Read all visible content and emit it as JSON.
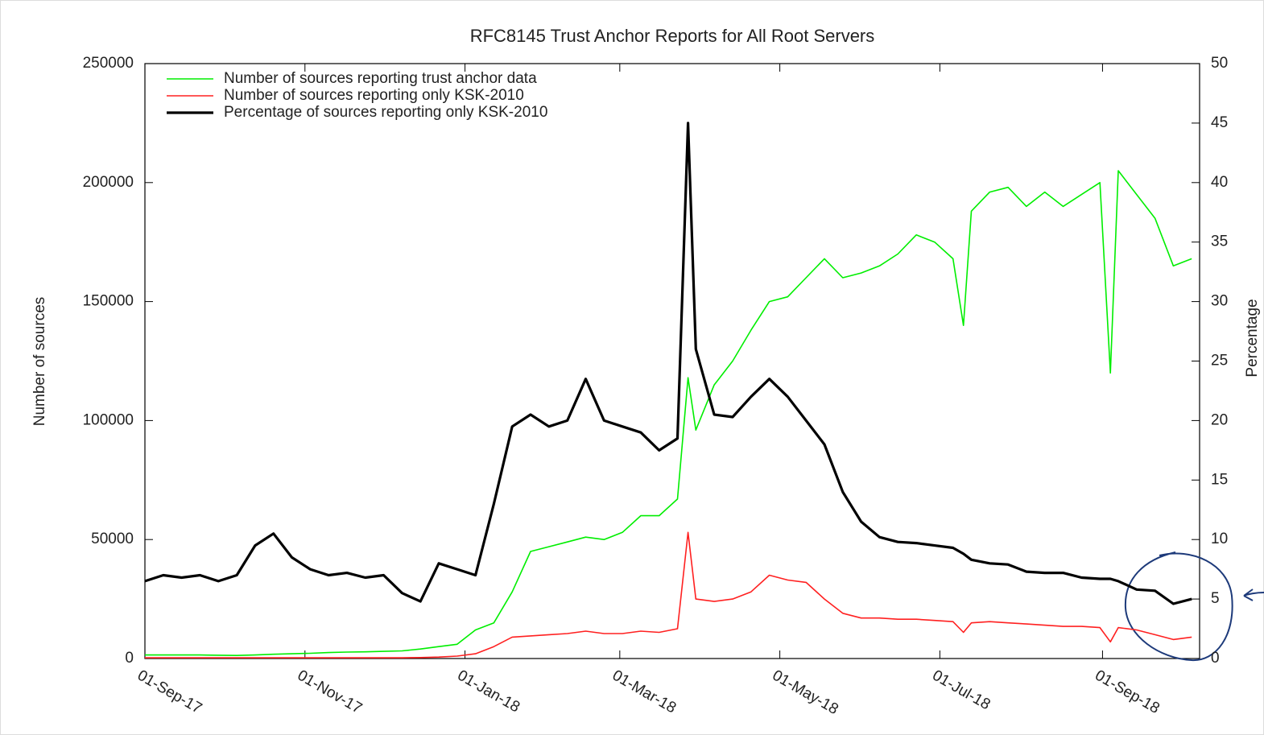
{
  "chart_data": {
    "type": "line",
    "title": "RFC8145 Trust Anchor Reports for All Root Servers",
    "y_label": "Number of sources",
    "y2_label": "Percentage",
    "xlim": [
      "2017-09-01",
      "2018-10-08"
    ],
    "xticks": [
      {
        "value": "2017-09-01",
        "label": "01-Sep-17"
      },
      {
        "value": "2017-11-01",
        "label": "01-Nov-17"
      },
      {
        "value": "2018-01-01",
        "label": "01-Jan-18"
      },
      {
        "value": "2018-03-01",
        "label": "01-Mar-18"
      },
      {
        "value": "2018-05-01",
        "label": "01-May-18"
      },
      {
        "value": "2018-07-01",
        "label": "01-Jul-18"
      },
      {
        "value": "2018-09-01",
        "label": "01-Sep-18"
      }
    ],
    "ylim": [
      0,
      250000
    ],
    "yticks": [
      0,
      50000,
      100000,
      150000,
      200000,
      250000
    ],
    "y2lim": [
      0,
      50
    ],
    "y2ticks": [
      0,
      5,
      10,
      15,
      20,
      25,
      30,
      35,
      40,
      45,
      50
    ],
    "legend": "upper left",
    "x": [
      "2017-09-01",
      "2017-09-08",
      "2017-09-15",
      "2017-09-22",
      "2017-09-29",
      "2017-10-06",
      "2017-10-13",
      "2017-10-20",
      "2017-10-27",
      "2017-11-03",
      "2017-11-10",
      "2017-11-17",
      "2017-11-24",
      "2017-12-01",
      "2017-12-08",
      "2017-12-15",
      "2017-12-22",
      "2017-12-29",
      "2018-01-05",
      "2018-01-12",
      "2018-01-19",
      "2018-01-26",
      "2018-02-02",
      "2018-02-09",
      "2018-02-16",
      "2018-02-23",
      "2018-03-02",
      "2018-03-09",
      "2018-03-16",
      "2018-03-23",
      "2018-03-27",
      "2018-03-30",
      "2018-04-06",
      "2018-04-13",
      "2018-04-20",
      "2018-04-27",
      "2018-05-04",
      "2018-05-11",
      "2018-05-18",
      "2018-05-25",
      "2018-06-01",
      "2018-06-08",
      "2018-06-15",
      "2018-06-22",
      "2018-06-29",
      "2018-07-06",
      "2018-07-10",
      "2018-07-13",
      "2018-07-20",
      "2018-07-27",
      "2018-08-03",
      "2018-08-10",
      "2018-08-17",
      "2018-08-24",
      "2018-08-31",
      "2018-09-04",
      "2018-09-07",
      "2018-09-14",
      "2018-09-21",
      "2018-09-28",
      "2018-10-05"
    ],
    "series": [
      {
        "name": "Number of sources reporting trust anchor data",
        "color": "#00ee00",
        "width": 1.6,
        "values": [
          1500,
          1500,
          1500,
          1500,
          1400,
          1300,
          1500,
          1800,
          2000,
          2200,
          2500,
          2700,
          2800,
          3000,
          3200,
          4000,
          5000,
          6000,
          12000,
          15000,
          28000,
          45000,
          47000,
          49000,
          51000,
          50000,
          53000,
          60000,
          60000,
          67000,
          118000,
          96000,
          115000,
          125000,
          138000,
          150000,
          152000,
          160000,
          168000,
          160000,
          162000,
          165000,
          170000,
          178000,
          175000,
          168000,
          140000,
          188000,
          196000,
          198000,
          190000,
          196000,
          190000,
          195000,
          200000,
          120000,
          205000,
          195000,
          185000,
          165000,
          168000
        ]
      },
      {
        "name": "Number of sources reporting only KSK-2010",
        "color": "#ff2020",
        "width": 1.6,
        "values": [
          300,
          300,
          300,
          300,
          300,
          300,
          300,
          300,
          300,
          300,
          300,
          300,
          300,
          300,
          300,
          400,
          600,
          1000,
          2000,
          5000,
          9000,
          9500,
          10000,
          10500,
          11500,
          10500,
          10500,
          11500,
          11000,
          12500,
          53000,
          25000,
          24000,
          25000,
          28000,
          35000,
          33000,
          32000,
          25000,
          19000,
          17000,
          17000,
          16500,
          16500,
          16000,
          15500,
          11000,
          15000,
          15500,
          15000,
          14500,
          14000,
          13500,
          13500,
          13000,
          7000,
          13000,
          12000,
          10000,
          8000,
          9000
        ]
      },
      {
        "name": "Percentage of sources reporting only KSK-2010",
        "color": "#000000",
        "width": 3.2,
        "axis": "y2",
        "values": [
          6.5,
          7,
          6.8,
          7,
          6.5,
          7,
          9.5,
          10.5,
          8.5,
          7.5,
          7,
          7.2,
          6.8,
          7,
          5.5,
          4.8,
          8,
          7.5,
          7,
          13,
          19.5,
          20.5,
          19.5,
          20,
          23.5,
          20,
          19.5,
          19,
          17.5,
          18.5,
          45,
          26,
          20.5,
          20.3,
          22,
          23.5,
          22,
          20,
          18,
          14,
          11.5,
          10.2,
          9.8,
          9.7,
          9.5,
          9.3,
          8.8,
          8.3,
          8,
          7.9,
          7.3,
          7.2,
          7.2,
          6.8,
          6.7,
          6.7,
          6.5,
          5.8,
          5.7,
          4.6,
          5
        ]
      }
    ]
  }
}
